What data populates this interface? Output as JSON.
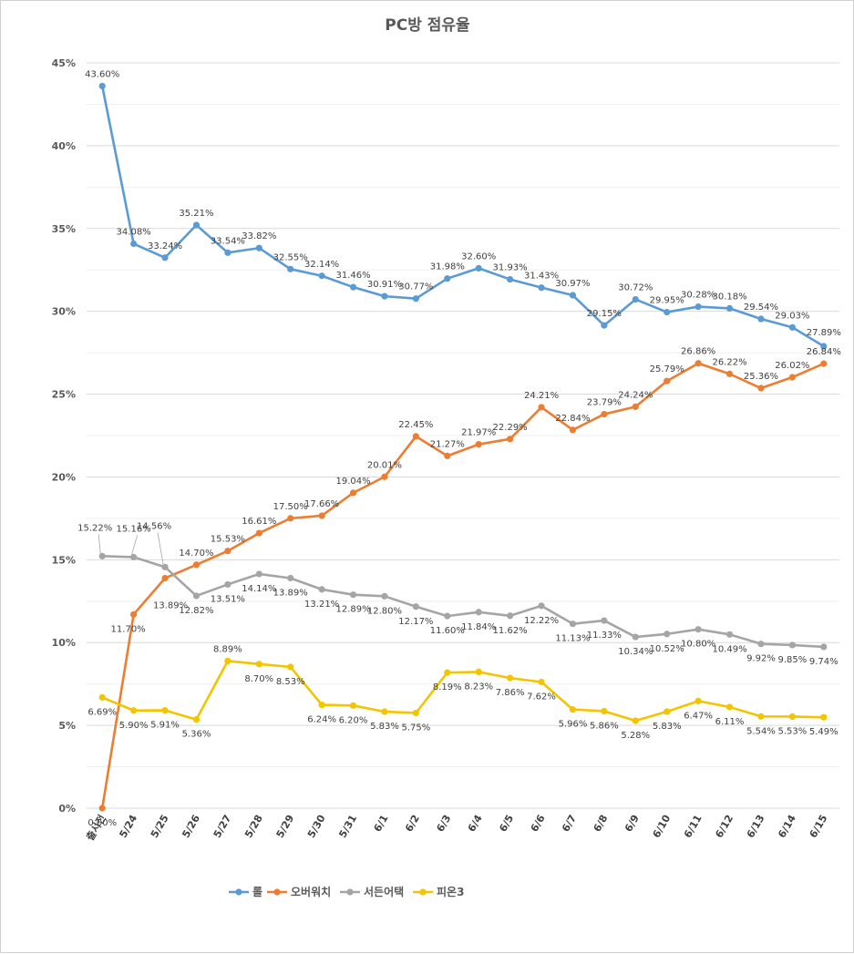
{
  "chart_data": {
    "type": "line",
    "title": "PC방 점유율",
    "xlabel": "",
    "ylabel": "",
    "ylim": [
      0,
      45
    ],
    "ytick_step": 5,
    "ytick_suffix": "%",
    "grid": "horizontal",
    "legend_position": "bottom",
    "categories": [
      "출시전",
      "5/24",
      "5/25",
      "5/26",
      "5/27",
      "5/28",
      "5/29",
      "5/30",
      "5/31",
      "6/1",
      "6/2",
      "6/3",
      "6/4",
      "6/5",
      "6/6",
      "6/7",
      "6/8",
      "6/9",
      "6/10",
      "6/11",
      "6/12",
      "6/13",
      "6/14",
      "6/15"
    ],
    "series": [
      {
        "name": "롤",
        "color": "#5b9bd5",
        "values": [
          43.6,
          34.08,
          33.24,
          35.21,
          33.54,
          33.82,
          32.55,
          32.14,
          31.46,
          30.91,
          30.77,
          31.98,
          32.6,
          31.93,
          31.43,
          30.97,
          29.15,
          30.72,
          29.95,
          30.28,
          30.18,
          29.54,
          29.03,
          27.89
        ]
      },
      {
        "name": "오버워치",
        "color": "#ed7d31",
        "values": [
          0,
          11.7,
          13.89,
          14.7,
          15.53,
          16.61,
          17.5,
          17.66,
          19.04,
          20.01,
          22.45,
          21.27,
          21.97,
          22.29,
          24.21,
          22.84,
          23.79,
          24.24,
          25.79,
          26.86,
          26.22,
          25.36,
          26.02,
          26.84
        ]
      },
      {
        "name": "서든어택",
        "color": "#a5a5a5",
        "values": [
          15.22,
          15.16,
          14.56,
          12.82,
          13.51,
          14.14,
          13.89,
          13.21,
          12.89,
          12.8,
          12.17,
          11.6,
          11.84,
          11.62,
          12.22,
          11.13,
          11.33,
          10.34,
          10.52,
          10.8,
          10.49,
          9.92,
          9.85,
          9.74
        ]
      },
      {
        "name": "피온3",
        "color": "#f2c500",
        "values": [
          6.69,
          5.9,
          5.91,
          5.36,
          8.89,
          8.7,
          8.53,
          6.24,
          6.2,
          5.83,
          5.75,
          8.19,
          8.23,
          7.86,
          7.62,
          5.96,
          5.86,
          5.28,
          5.83,
          6.47,
          6.11,
          5.54,
          5.53,
          5.49
        ]
      }
    ]
  }
}
